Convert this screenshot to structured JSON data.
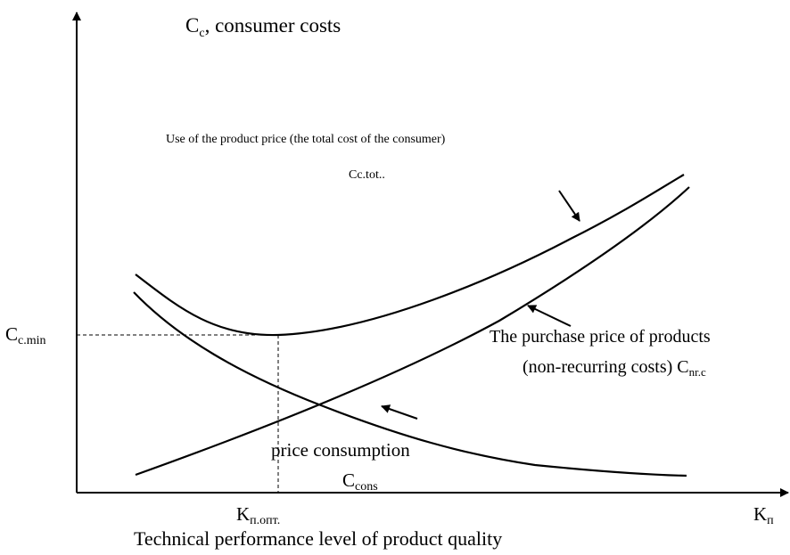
{
  "axis_y_label": {
    "main": "C",
    "sub": "c",
    "rest": ", consumer costs"
  },
  "total_cost_label": {
    "line1": "Use of the product price (the total cost of the consumer)",
    "line2": "Cc.tot.."
  },
  "min_cost_label": {
    "main": "C",
    "sub": "c.min"
  },
  "purchase_label": {
    "line1": "The purchase price of products",
    "line2": "(non-recurring costs) C",
    "sub": "nr.c"
  },
  "consumption_label": {
    "line1": "price consumption",
    "main": "C",
    "sub": "cons"
  },
  "optimum_label": {
    "main": "K",
    "sub": "п.опт."
  },
  "axis_x_symbol": {
    "main": "K",
    "sub": "п"
  },
  "axis_x_label": "Technical performance level of product quality"
}
